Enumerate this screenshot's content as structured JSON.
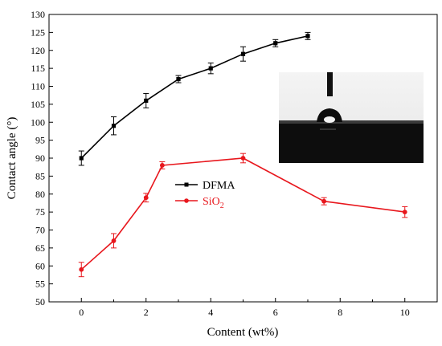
{
  "chart_data": {
    "type": "line",
    "xlabel": "Content (wt%)",
    "ylabel": "Contact angle (°)",
    "xlim": [
      -1,
      11
    ],
    "ylim": [
      50,
      130
    ],
    "x_ticks": [
      0,
      2,
      4,
      6,
      8,
      10
    ],
    "y_ticks": [
      50,
      55,
      60,
      65,
      70,
      75,
      80,
      85,
      90,
      95,
      100,
      105,
      110,
      115,
      120,
      125,
      130
    ],
    "grid": false,
    "legend_placement": "center-left",
    "series": [
      {
        "name": "DFMA",
        "color": "#000000",
        "marker": "square",
        "x": [
          0,
          1,
          2,
          3,
          4,
          5,
          6,
          7
        ],
        "values": [
          90,
          99,
          106,
          112,
          115,
          119,
          122,
          124
        ],
        "error": [
          2,
          2.5,
          2,
          1,
          1.5,
          2,
          1,
          1
        ]
      },
      {
        "name": "SiO2",
        "name_base": "SiO",
        "name_sub": "2",
        "color": "#e8171d",
        "marker": "circle",
        "x": [
          0,
          1,
          2,
          2.5,
          5,
          7.5,
          10
        ],
        "values": [
          59,
          67,
          79,
          88,
          90,
          78,
          75
        ],
        "error": [
          2,
          2,
          1.2,
          1,
          1.3,
          1,
          1.5
        ]
      }
    ],
    "inset": {
      "description_icon": "droplet-photo-icon"
    }
  }
}
